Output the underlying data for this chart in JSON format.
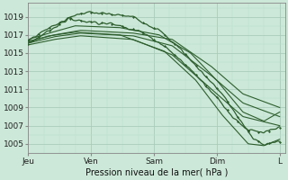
{
  "bg_color": "#cce8d8",
  "grid_major_color": "#aaccbb",
  "grid_minor_color": "#bbddcc",
  "line_color": "#2d5e2d",
  "xlabel": "Pression niveau de la mer( hPa )",
  "xtick_labels": [
    "Jeu",
    "Ven",
    "Sam",
    "Dim",
    "L"
  ],
  "xtick_positions": [
    0,
    24,
    48,
    72,
    96
  ],
  "ytick_values": [
    1005,
    1007,
    1009,
    1011,
    1013,
    1015,
    1017,
    1019
  ],
  "ylim": [
    1004.0,
    1020.5
  ],
  "xlim": [
    0,
    98
  ]
}
